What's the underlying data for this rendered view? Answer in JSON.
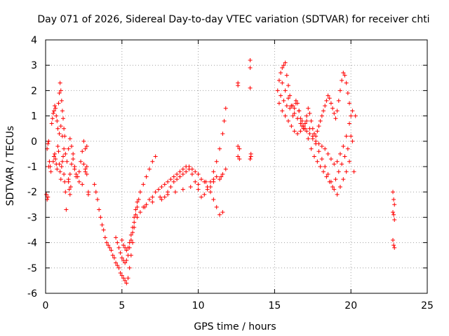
{
  "chart_data": {
    "type": "scatter",
    "title": "Day 071 of 2026, Sidereal Day-to-day VTEC variation (SDTVAR) for receiver chti",
    "xlabel": "GPS time / hours",
    "ylabel": "SDTVAR / TECUs",
    "xlim": [
      0,
      25
    ],
    "ylim": [
      -6,
      4
    ],
    "xticks": [
      0,
      5,
      10,
      15,
      20,
      25
    ],
    "xtick_labels": [
      "0",
      "5",
      "10",
      "15",
      "20",
      "25"
    ],
    "yticks": [
      -6,
      -5,
      -4,
      -3,
      -2,
      -1,
      0,
      1,
      2,
      3,
      4
    ],
    "ytick_labels": [
      "-6",
      "-5",
      "-4",
      "-3",
      "-2",
      "-1",
      "0",
      "1",
      "2",
      "3",
      "4"
    ],
    "grid": true,
    "marker": "plus",
    "color": "#ff0000",
    "series": [
      {
        "name": "SDTVAR",
        "x": [
          0.05,
          0.1,
          0.15,
          0.2,
          0.25,
          0.1,
          0.15,
          0.2,
          0.3,
          0.35,
          0.4,
          0.45,
          0.5,
          0.55,
          0.6,
          0.65,
          0.7,
          0.75,
          0.8,
          0.85,
          0.9,
          0.95,
          1.0,
          1.05,
          1.1,
          1.15,
          1.2,
          1.25,
          0.5,
          0.55,
          0.6,
          0.65,
          0.7,
          0.75,
          0.8,
          0.85,
          0.9,
          0.95,
          1.0,
          1.05,
          1.1,
          1.15,
          1.2,
          1.25,
          1.3,
          1.35,
          0.9,
          1.0,
          1.1,
          1.2,
          1.3,
          1.4,
          1.5,
          1.6,
          1.7,
          1.8,
          1.9,
          2.0,
          2.1,
          2.2,
          2.3,
          2.4,
          2.5,
          2.6,
          2.7,
          1.5,
          1.6,
          1.7,
          1.8,
          1.9,
          2.0,
          2.2,
          2.4,
          2.6,
          2.7,
          2.8,
          1.5,
          1.55,
          1.6,
          1.65,
          2.5,
          2.6,
          2.7,
          2.8,
          3.2,
          3.3,
          3.4,
          3.5,
          3.6,
          3.7,
          3.8,
          3.9,
          4.0,
          4.1,
          4.2,
          4.3,
          4.4,
          4.5,
          4.6,
          4.7,
          4.8,
          4.9,
          5.0,
          5.1,
          5.2,
          5.3,
          5.4,
          5.5,
          5.6,
          5.7,
          5.8,
          4.6,
          4.7,
          4.8,
          4.9,
          5.0,
          5.1,
          5.2,
          5.3,
          5.4,
          5.5,
          5.6,
          5.7,
          5.8,
          5.9,
          6.0,
          6.1,
          5.0,
          5.1,
          5.2,
          5.3,
          5.4,
          5.5,
          5.6,
          5.7,
          5.8,
          5.9,
          6.0,
          6.2,
          6.4,
          6.6,
          6.8,
          7.0,
          7.2,
          6.0,
          6.2,
          6.4,
          6.6,
          6.8,
          7.0,
          7.2,
          7.4,
          7.6,
          7.8,
          8.0,
          8.2,
          8.4,
          8.6,
          8.8,
          9.0,
          9.2,
          9.4,
          9.6,
          9.8,
          10.0,
          10.2,
          10.4,
          10.6,
          10.8,
          11.0,
          11.2,
          11.4,
          11.6,
          6.5,
          7.0,
          7.5,
          8.0,
          8.5,
          9.0,
          9.5,
          10.0,
          10.5,
          11.0,
          11.5,
          7.6,
          7.8,
          8.0,
          8.2,
          8.4,
          8.6,
          8.8,
          9.0,
          9.2,
          9.4,
          9.6,
          9.8,
          10.0,
          10.2,
          10.4,
          10.6,
          10.8,
          11.0,
          11.2,
          11.4,
          11.6,
          11.7,
          11.8,
          10.8,
          11.0,
          11.2,
          11.4,
          11.6,
          11.8,
          12.6,
          12.6,
          12.6,
          12.7,
          12.6,
          12.7,
          13.4,
          13.4,
          13.4,
          13.45,
          13.45,
          13.4,
          15.2,
          15.3,
          15.4,
          15.5,
          15.6,
          15.7,
          15.8,
          15.9,
          16.0,
          16.1,
          16.2,
          16.3,
          16.4,
          16.5,
          16.6,
          16.7,
          16.8,
          16.9,
          17.0,
          17.1,
          17.2,
          17.3,
          17.4,
          17.5,
          17.6,
          17.7,
          17.8,
          17.9,
          18.0,
          18.1,
          18.2,
          18.3,
          18.4,
          18.5,
          18.6,
          18.7,
          18.8,
          18.9,
          19.0,
          19.1,
          19.2,
          19.3,
          19.4,
          19.5,
          19.6,
          19.7,
          19.8,
          19.9,
          20.0,
          20.1,
          20.2,
          15.3,
          15.5,
          15.7,
          15.9,
          16.1,
          16.3,
          16.5,
          16.7,
          16.9,
          17.1,
          17.3,
          17.5,
          17.7,
          17.9,
          18.1,
          18.3,
          18.5,
          18.7,
          18.9,
          19.1,
          19.3,
          19.5,
          19.7,
          19.9,
          15.4,
          15.6,
          15.8,
          16.0,
          16.2,
          16.4,
          16.6,
          16.8,
          17.0,
          17.2,
          17.4,
          17.6,
          17.8,
          18.0,
          18.2,
          18.4,
          18.6,
          18.8,
          19.0,
          19.2,
          19.4,
          19.6,
          19.8,
          20.0,
          15.5,
          15.7,
          15.9,
          16.1,
          16.3,
          16.5,
          16.7,
          16.9,
          17.1,
          17.3,
          17.5,
          17.7,
          17.9,
          18.1,
          18.3,
          18.5,
          18.7,
          18.9,
          19.1,
          19.3,
          19.5,
          19.7,
          19.9,
          20.1,
          20.3,
          22.75,
          22.8,
          22.85,
          22.75,
          22.8,
          22.85,
          22.75,
          22.8,
          22.85
        ],
        "y": [
          -2.1,
          -2.3,
          -2.2,
          -1.0,
          -0.8,
          -0.3,
          -0.1,
          0.0,
          -1.0,
          -1.2,
          0.7,
          0.9,
          1.1,
          1.2,
          1.4,
          1.3,
          1.0,
          0.8,
          0.5,
          1.5,
          1.9,
          2.3,
          2.0,
          1.6,
          1.2,
          0.9,
          0.5,
          0.2,
          -0.8,
          -0.6,
          -0.5,
          -0.7,
          -0.9,
          -1.1,
          -0.2,
          -0.4,
          -0.9,
          -1.2,
          -1.5,
          -1.0,
          -0.8,
          -0.6,
          -1.3,
          -1.6,
          -2.0,
          -2.7,
          0.3,
          0.6,
          0.2,
          -0.3,
          -0.5,
          -0.8,
          -0.3,
          0.1,
          -0.2,
          -0.5,
          -1.0,
          -1.3,
          -1.4,
          -1.2,
          -0.8,
          -0.4,
          0.0,
          -0.3,
          -0.2,
          -1.5,
          -1.3,
          -0.9,
          -0.7,
          -1.1,
          -1.4,
          -1.6,
          -1.7,
          -1.2,
          -1.0,
          -2.1,
          -1.6,
          -1.9,
          -2.1,
          -1.8,
          -0.9,
          -1.1,
          -1.3,
          -2.0,
          -1.7,
          -2.0,
          -2.3,
          -2.7,
          -3.0,
          -3.3,
          -3.5,
          -3.8,
          -4.0,
          -4.1,
          -4.2,
          -4.3,
          -4.5,
          -4.6,
          -4.8,
          -4.9,
          -5.0,
          -5.2,
          -5.3,
          -5.4,
          -5.5,
          -5.6,
          -5.4,
          -5.0,
          -4.5,
          -4.0,
          -3.4,
          -3.8,
          -4.0,
          -4.2,
          -4.4,
          -4.6,
          -4.7,
          -4.8,
          -4.7,
          -4.5,
          -4.2,
          -3.9,
          -3.6,
          -3.2,
          -2.9,
          -2.6,
          -2.3,
          -3.9,
          -4.1,
          -4.2,
          -4.3,
          -4.2,
          -4.0,
          -3.7,
          -3.4,
          -3.0,
          -2.7,
          -2.4,
          -2.0,
          -1.7,
          -1.4,
          -1.1,
          -0.8,
          -0.6,
          -3.0,
          -2.8,
          -2.6,
          -2.5,
          -2.3,
          -2.2,
          -2.0,
          -1.9,
          -1.8,
          -1.7,
          -1.6,
          -1.5,
          -1.4,
          -1.3,
          -1.2,
          -1.1,
          -1.0,
          -1.0,
          -1.1,
          -1.2,
          -1.3,
          -1.5,
          -1.6,
          -1.8,
          -2.0,
          -2.3,
          -2.6,
          -2.9,
          -2.8,
          -2.6,
          -2.4,
          -2.2,
          -2.1,
          -2.0,
          -1.9,
          -1.8,
          -1.7,
          -1.6,
          -1.5,
          -1.4,
          -2.3,
          -2.2,
          -2.0,
          -1.8,
          -1.6,
          -1.5,
          -1.4,
          -1.3,
          -1.2,
          -1.1,
          -1.3,
          -1.6,
          -1.9,
          -2.2,
          -2.1,
          -1.9,
          -1.6,
          -1.2,
          -0.8,
          -0.3,
          0.3,
          0.8,
          1.3,
          -1.8,
          -1.6,
          -1.4,
          -1.5,
          -1.3,
          -1.1,
          2.3,
          2.2,
          -0.2,
          -0.3,
          -0.6,
          -0.7,
          3.2,
          2.9,
          2.1,
          -0.5,
          -0.6,
          -0.7,
          2.0,
          2.4,
          2.7,
          2.9,
          3.0,
          3.1,
          2.6,
          2.2,
          1.8,
          1.4,
          1.0,
          1.3,
          1.6,
          1.5,
          1.2,
          0.9,
          0.6,
          0.5,
          0.7,
          1.0,
          1.3,
          1.1,
          0.8,
          0.5,
          0.3,
          0.2,
          0.4,
          0.6,
          0.8,
          1.0,
          1.2,
          1.4,
          1.6,
          1.8,
          1.7,
          1.5,
          1.3,
          1.1,
          0.9,
          1.2,
          1.6,
          2.0,
          2.4,
          2.7,
          2.6,
          2.3,
          1.9,
          1.5,
          1.0,
          0.0,
          -1.2,
          1.5,
          1.2,
          1.0,
          0.8,
          0.6,
          0.4,
          0.3,
          0.4,
          0.6,
          0.8,
          0.5,
          0.2,
          -0.1,
          -0.4,
          -0.7,
          -1.0,
          -1.3,
          -1.6,
          -1.9,
          -2.1,
          -1.8,
          -1.5,
          -1.2,
          -0.8,
          1.8,
          1.6,
          1.4,
          1.3,
          1.4,
          1.5,
          1.2,
          0.8,
          0.5,
          0.1,
          -0.3,
          -0.6,
          -0.8,
          -1.0,
          -1.2,
          -1.4,
          -1.6,
          -1.8,
          -1.5,
          -1.2,
          -0.9,
          -0.6,
          -0.3,
          0.2,
          2.3,
          2.0,
          1.7,
          1.4,
          1.1,
          0.9,
          0.7,
          0.5,
          0.4,
          0.3,
          0.1,
          0.0,
          -0.1,
          -0.2,
          -0.3,
          -0.5,
          -0.7,
          -0.9,
          -0.8,
          -0.5,
          -0.2,
          0.2,
          0.7,
          1.2,
          1.0,
          -2.0,
          -2.3,
          -2.5,
          -2.8,
          -2.9,
          -3.1,
          -3.9,
          -4.1,
          -4.2
        ]
      }
    ]
  }
}
